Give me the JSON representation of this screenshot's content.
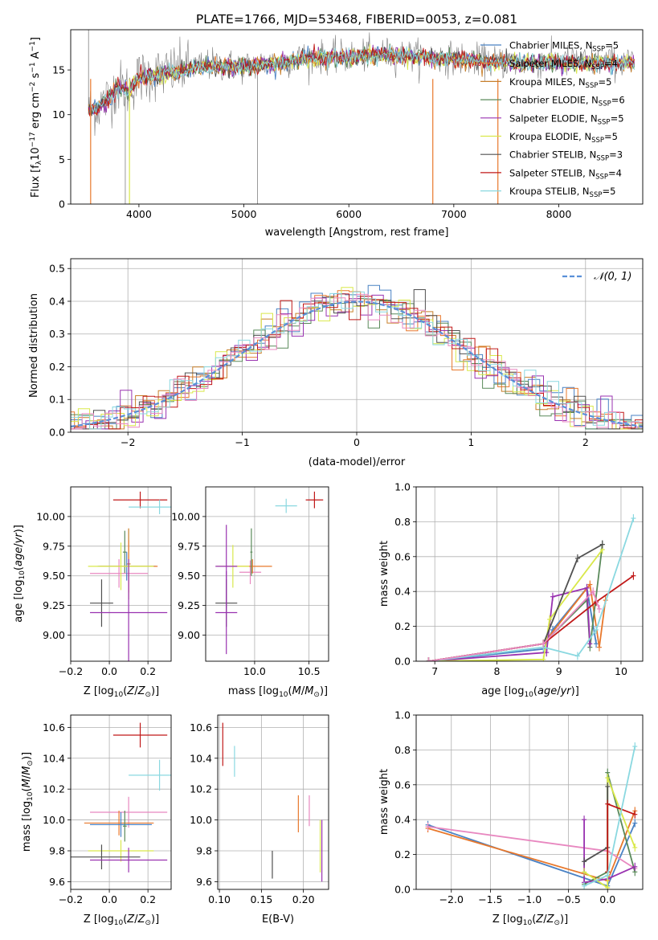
{
  "colors": {
    "chabrier_miles": "#4a82c4",
    "salpeter_miles": "#e8782c",
    "kroupa_miles": "#c87f2a",
    "chabrier_elodie": "#5a8a5a",
    "salpeter_elodie": "#9932b0",
    "kroupa_elodie": "#d9e84a",
    "chabrier_stelib": "#505050",
    "salpeter_stelib": "#c01818",
    "kroupa_stelib": "#8ad8e0",
    "extra_pink": "#e888c0",
    "normal": "#5a90d8",
    "data": "#808080"
  },
  "chart_data": [
    {
      "type": "line",
      "title": "PLATE=1766, MJD=53468, FIBERID=0053, z=0.081",
      "xlabel": "wavelength [Angstrom, rest frame]",
      "ylabel": "Flux [fλ10⁻¹⁷ erg cm⁻² s⁻¹ A⁻¹]",
      "xlim": [
        3350,
        8800
      ],
      "ylim": [
        0,
        19.5
      ],
      "xticks": [
        4000,
        5000,
        6000,
        7000,
        8000
      ],
      "yticks": [
        0,
        5,
        10,
        15
      ],
      "legend_location": "right",
      "continuum": {
        "x": [
          3520,
          3600,
          3700,
          3800,
          3900,
          4000,
          4100,
          4200,
          4300,
          4400,
          4500,
          4700,
          5000,
          5300,
          5600,
          6000,
          6300,
          6600,
          6800,
          7000,
          7200,
          7400
        ],
        "y": [
          10.5,
          10.8,
          11.8,
          13.2,
          12.8,
          14.2,
          14.4,
          14.6,
          14.8,
          15.0,
          15.3,
          15.6,
          15.4,
          15.8,
          16.4,
          16.5,
          16.8,
          16.6,
          16.4,
          16.3,
          16.1,
          15.9
        ]
      },
      "series": [
        {
          "name": "Chabrier MILES, N_SSP=5"
        },
        {
          "name": "Salpeter MILES, N_SSP=4"
        },
        {
          "name": "Kroupa MILES, N_SSP=5"
        },
        {
          "name": "Chabrier ELODIE, N_SSP=6"
        },
        {
          "name": "Salpeter ELODIE, N_SSP=5"
        },
        {
          "name": "Kroupa ELODIE, N_SSP=5"
        },
        {
          "name": "Chabrier STELIB, N_SSP=3"
        },
        {
          "name": "Salpeter STELIB, N_SSP=4"
        },
        {
          "name": "Kroupa STELIB, N_SSP=5"
        }
      ]
    },
    {
      "type": "histogram",
      "xlabel": "(data-model)/error",
      "ylabel": "Normed distribution",
      "xlim": [
        -2.5,
        2.5
      ],
      "ylim": [
        0,
        0.53
      ],
      "xticks": [
        -2,
        -1,
        0,
        1,
        2
      ],
      "yticks": [
        0.0,
        0.1,
        0.2,
        0.3,
        0.4,
        0.5
      ],
      "grid": true,
      "legend_location": "top-right",
      "legend": "𝒩(0, 1)"
    },
    {
      "type": "scatter",
      "xlabel": "Z [log10(Z/Z⊙)]",
      "ylabel": "age [log10(age/yr)]",
      "xlim": [
        -0.2,
        0.32
      ],
      "ylim": [
        8.78,
        10.25
      ],
      "xticks": [
        -0.2,
        0.0,
        0.2
      ],
      "yticks": [
        9.0,
        9.25,
        9.5,
        9.75,
        10.0
      ],
      "grid": true,
      "points": [
        {
          "x": 0.16,
          "y": 10.14,
          "xerr": 0.14,
          "yerr": 0.07,
          "c": "salpeter_stelib"
        },
        {
          "x": 0.26,
          "y": 10.08,
          "xerr": 0.16,
          "yerr": 0.06,
          "c": "kroupa_stelib"
        },
        {
          "x": 0.08,
          "y": 9.7,
          "xerr": 0.01,
          "yerr": 0.18,
          "c": "chabrier_elodie"
        },
        {
          "x": 0.1,
          "y": 9.6,
          "xerr": 0.01,
          "yerr": 0.3,
          "c": "kroupa_miles"
        },
        {
          "x": 0.05,
          "y": 9.52,
          "xerr": 0.15,
          "yerr": 0.12,
          "c": "extra_pink"
        },
        {
          "x": 0.09,
          "y": 9.58,
          "xerr": 0.15,
          "yerr": 0.12,
          "c": "chabrier_miles"
        },
        {
          "x": 0.1,
          "y": 9.58,
          "xerr": 0.15,
          "yerr": 0.22,
          "c": "salpeter_miles"
        },
        {
          "x": 0.06,
          "y": 9.58,
          "xerr": 0.17,
          "yerr": 0.2,
          "c": "kroupa_elodie"
        },
        {
          "x": -0.04,
          "y": 9.27,
          "xerr": 0.06,
          "yerr": 0.2,
          "c": "chabrier_stelib"
        },
        {
          "x": 0.1,
          "y": 9.19,
          "xerr": 0.2,
          "yerr": 0.45,
          "c": "salpeter_elodie"
        }
      ]
    },
    {
      "type": "scatter",
      "xlabel": "mass [log10(M/M⊙)]",
      "xlim": [
        9.55,
        10.68
      ],
      "ylim": [
        8.78,
        10.25
      ],
      "xticks": [
        10.0,
        10.5
      ],
      "yticks": [
        9.0,
        9.25,
        9.5,
        9.75,
        10.0
      ],
      "grid": true,
      "points": [
        {
          "x": 10.55,
          "y": 10.14,
          "xerr": 0.08,
          "yerr": 0.07,
          "c": "salpeter_stelib"
        },
        {
          "x": 10.29,
          "y": 10.09,
          "xerr": 0.1,
          "yerr": 0.06,
          "c": "kroupa_stelib"
        },
        {
          "x": 9.96,
          "y": 9.53,
          "xerr": 0.1,
          "yerr": 0.1,
          "c": "extra_pink"
        },
        {
          "x": 9.98,
          "y": 9.58,
          "xerr": 0.18,
          "yerr": 0.06,
          "c": "salpeter_miles"
        },
        {
          "x": 9.97,
          "y": 9.7,
          "xerr": 0.01,
          "yerr": 0.2,
          "c": "chabrier_elodie"
        },
        {
          "x": 9.8,
          "y": 9.58,
          "xerr": 0.15,
          "yerr": 0.18,
          "c": "kroupa_elodie"
        },
        {
          "x": 9.74,
          "y": 9.58,
          "xerr": 0.1,
          "yerr": 0.35,
          "c": "salpeter_elodie"
        },
        {
          "x": 9.74,
          "y": 9.27,
          "xerr": 0.1,
          "yerr": 0.2,
          "c": "chabrier_stelib"
        },
        {
          "x": 9.74,
          "y": 9.19,
          "xerr": 0.1,
          "yerr": 0.35,
          "c": "salpeter_elodie"
        }
      ]
    },
    {
      "type": "line",
      "xlabel": "age [log10(age/yr)]",
      "ylabel": "mass weight",
      "xlim": [
        6.7,
        10.35
      ],
      "ylim": [
        0,
        1.0
      ],
      "xticks": [
        7,
        8,
        9,
        10
      ],
      "yticks": [
        0.0,
        0.2,
        0.4,
        0.6,
        0.8,
        1.0
      ],
      "grid": true,
      "series": [
        {
          "c": "chabrier_miles",
          "x": [
            6.9,
            8.75,
            8.9,
            9.45,
            9.6
          ],
          "y": [
            0.0,
            0.07,
            0.18,
            0.42,
            0.1
          ]
        },
        {
          "c": "salpeter_miles",
          "x": [
            6.9,
            8.75,
            9.5,
            9.65,
            9.75
          ],
          "y": [
            0.0,
            0.1,
            0.44,
            0.08,
            0.35
          ]
        },
        {
          "c": "chabrier_elodie",
          "x": [
            6.9,
            8.75,
            8.8,
            9.45,
            9.5,
            9.7
          ],
          "y": [
            0.0,
            0.1,
            0.12,
            0.35,
            0.08,
            0.67
          ]
        },
        {
          "c": "salpeter_elodie",
          "x": [
            6.9,
            8.8,
            8.9,
            9.45,
            9.5
          ],
          "y": [
            0.0,
            0.05,
            0.37,
            0.42,
            0.1
          ]
        },
        {
          "c": "kroupa_elodie",
          "x": [
            6.9,
            8.75,
            8.85,
            9.7
          ],
          "y": [
            0.0,
            0.01,
            0.24,
            0.64
          ]
        },
        {
          "c": "chabrier_stelib",
          "x": [
            6.9,
            8.75,
            9.3,
            9.7
          ],
          "y": [
            0.0,
            0.1,
            0.59,
            0.67
          ]
        },
        {
          "c": "salpeter_stelib",
          "x": [
            6.9,
            8.75,
            9.6,
            10.2
          ],
          "y": [
            0.0,
            0.1,
            0.34,
            0.49
          ]
        },
        {
          "c": "kroupa_stelib",
          "x": [
            6.9,
            8.75,
            9.3,
            9.6,
            10.2
          ],
          "y": [
            0.0,
            0.08,
            0.03,
            0.18,
            0.82
          ]
        },
        {
          "c": "extra_pink",
          "x": [
            6.9,
            8.75,
            9.55,
            9.65
          ],
          "y": [
            0.0,
            0.1,
            0.4,
            0.3
          ]
        }
      ]
    },
    {
      "type": "scatter",
      "xlabel": "Z [log10(Z/Z⊙)]",
      "ylabel": "mass [log10(M/M⊙)]",
      "xlim": [
        -0.2,
        0.32
      ],
      "ylim": [
        9.55,
        10.68
      ],
      "xticks": [
        -0.2,
        0.0,
        0.2
      ],
      "yticks": [
        9.6,
        9.8,
        10.0,
        10.2,
        10.4,
        10.6
      ],
      "grid": true,
      "points": [
        {
          "x": 0.16,
          "y": 10.55,
          "xerr": 0.14,
          "yerr": 0.08,
          "c": "salpeter_stelib"
        },
        {
          "x": 0.26,
          "y": 10.29,
          "xerr": 0.16,
          "yerr": 0.1,
          "c": "kroupa_stelib"
        },
        {
          "x": 0.1,
          "y": 10.05,
          "xerr": 0.2,
          "yerr": 0.1,
          "c": "extra_pink"
        },
        {
          "x": 0.05,
          "y": 9.98,
          "xerr": 0.18,
          "yerr": 0.08,
          "c": "salpeter_miles"
        },
        {
          "x": 0.06,
          "y": 9.97,
          "xerr": 0.16,
          "yerr": 0.08,
          "c": "chabrier_miles"
        },
        {
          "x": 0.08,
          "y": 9.96,
          "xerr": 0.01,
          "yerr": 0.1,
          "c": "chabrier_elodie"
        },
        {
          "x": 0.06,
          "y": 9.8,
          "xerr": 0.17,
          "yerr": 0.07,
          "c": "kroupa_elodie"
        },
        {
          "x": -0.04,
          "y": 9.76,
          "xerr": 0.2,
          "yerr": 0.08,
          "c": "chabrier_stelib"
        },
        {
          "x": 0.1,
          "y": 9.74,
          "xerr": 0.2,
          "yerr": 0.08,
          "c": "salpeter_elodie"
        }
      ]
    },
    {
      "type": "scatter",
      "xlabel": "E(B-V)",
      "xlim": [
        0.098,
        0.23
      ],
      "ylim": [
        9.55,
        10.68
      ],
      "xticks": [
        0.1,
        0.15,
        0.2
      ],
      "yticks": [
        9.6,
        9.8,
        10.0,
        10.2,
        10.4,
        10.6
      ],
      "grid": true,
      "points": [
        {
          "x": 0.104,
          "y": 10.49,
          "yerr": 0.14,
          "c": "salpeter_stelib"
        },
        {
          "x": 0.118,
          "y": 10.38,
          "yerr": 0.1,
          "c": "kroupa_stelib"
        },
        {
          "x": 0.163,
          "y": 9.71,
          "yerr": 0.09,
          "c": "chabrier_stelib"
        },
        {
          "x": 0.194,
          "y": 10.04,
          "yerr": 0.12,
          "c": "salpeter_miles"
        },
        {
          "x": 0.207,
          "y": 10.06,
          "yerr": 0.1,
          "c": "extra_pink"
        },
        {
          "x": 0.22,
          "y": 9.83,
          "yerr": 0.17,
          "c": "kroupa_elodie"
        },
        {
          "x": 0.222,
          "y": 9.8,
          "yerr": 0.2,
          "c": "salpeter_elodie"
        }
      ]
    },
    {
      "type": "line",
      "xlabel": "Z [log10(Z/Z⊙)]",
      "ylabel": "mass weight",
      "xlim": [
        -2.45,
        0.45
      ],
      "ylim": [
        0,
        1.0
      ],
      "xticks": [
        -2.0,
        -1.5,
        -1.0,
        -0.5,
        0.0
      ],
      "yticks": [
        0.0,
        0.2,
        0.4,
        0.6,
        0.8,
        1.0
      ],
      "grid": true,
      "series": [
        {
          "c": "chabrier_miles",
          "x": [
            -2.3,
            0.0,
            0.35
          ],
          "y": [
            0.37,
            0.02,
            0.38
          ]
        },
        {
          "c": "salpeter_miles",
          "x": [
            -2.3,
            0.0,
            0.35
          ],
          "y": [
            0.35,
            0.05,
            0.45
          ]
        },
        {
          "c": "extra_pink",
          "x": [
            -2.3,
            0.0,
            0.35
          ],
          "y": [
            0.36,
            0.22,
            0.12
          ]
        },
        {
          "c": "chabrier_elodie",
          "x": [
            -0.3,
            0.0,
            0.0,
            0.35
          ],
          "y": [
            0.03,
            0.1,
            0.67,
            0.1
          ]
        },
        {
          "c": "salpeter_elodie",
          "x": [
            -0.3,
            -0.3,
            0.0,
            0.35
          ],
          "y": [
            0.4,
            0.04,
            0.06,
            0.13
          ]
        },
        {
          "c": "kroupa_elodie",
          "x": [
            -0.3,
            0.0,
            0.0,
            0.35
          ],
          "y": [
            0.1,
            0.01,
            0.64,
            0.24
          ]
        },
        {
          "c": "chabrier_stelib",
          "x": [
            -0.3,
            0.0,
            0.0
          ],
          "y": [
            0.16,
            0.24,
            0.59
          ]
        },
        {
          "c": "salpeter_stelib",
          "x": [
            0.0,
            0.0,
            0.35
          ],
          "y": [
            0.1,
            0.49,
            0.43
          ]
        },
        {
          "c": "kroupa_stelib",
          "x": [
            -0.3,
            0.0,
            0.35
          ],
          "y": [
            0.02,
            0.08,
            0.82
          ]
        }
      ]
    }
  ]
}
